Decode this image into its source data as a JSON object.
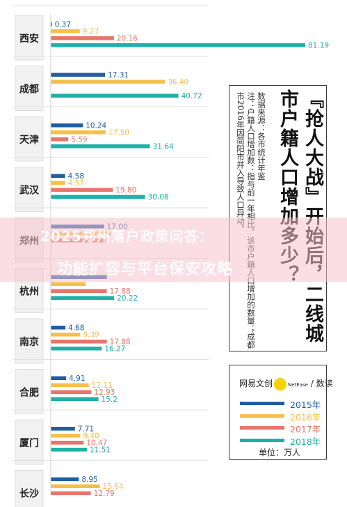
{
  "chart_data": {
    "type": "bar",
    "orientation": "horizontal",
    "title": "『抢人大战』开始后，二线城市户籍人口增加多少？",
    "note": "数据来源：各市统计年鉴\n注：户籍人口增加数：指与前一年相比，该市户籍人口增加的数量；成都市2016年因简阳市并入导致人口异动。",
    "unit": "单位：万人",
    "brand": "网易文创",
    "brand_tag": "NetEase",
    "brand_sub": "数读",
    "legend_placement": "right",
    "categories": [
      "西安",
      "成都",
      "天津",
      "武汉",
      "郑州",
      "杭州",
      "南京",
      "合肥",
      "厦门",
      "长沙"
    ],
    "series": [
      {
        "name": "2015年",
        "color": "#1f5fa0",
        "values": [
          0.37,
          17.31,
          10.24,
          4.58,
          17.0,
          17.88,
          4.68,
          4.91,
          7.71,
          8.95
        ]
      },
      {
        "name": "2016年",
        "color": "#f5c04a",
        "values": [
          9.27,
          36.4,
          17.5,
          4.57,
          19.1,
          11.12,
          9.39,
          12.11,
          9.4,
          15.64
        ]
      },
      {
        "name": "2017年",
        "color": "#e8756a",
        "values": [
          20.16,
          null,
          5.59,
          19.8,
          17.5,
          17.88,
          17.88,
          12.93,
          10.47,
          12.79
        ]
      },
      {
        "name": "2018年",
        "color": "#1fb0a8",
        "values": [
          81.19,
          40.72,
          31.64,
          30.08,
          null,
          20.22,
          16.27,
          15.2,
          11.51,
          null
        ]
      }
    ],
    "value_labels": [
      [
        "0.37",
        "9.27",
        "20.16",
        "81.19"
      ],
      [
        "17.31",
        "36.40",
        "",
        "40.72"
      ],
      [
        "10.24",
        "17.50",
        "5.59",
        "31.64"
      ],
      [
        "4.58",
        "4.57",
        "19.80",
        "30.08"
      ],
      [
        "17.00",
        "",
        "",
        ""
      ],
      [
        "",
        "",
        "17.88",
        "20.22"
      ],
      [
        "4.68",
        "9.39",
        "17.88",
        "16.27"
      ],
      [
        "4.91",
        "12.11",
        "12.93",
        "15.2"
      ],
      [
        "7.71",
        "9.40",
        "10.47",
        "11.51"
      ],
      [
        "8.95",
        "15.64",
        "12.79",
        ""
      ]
    ],
    "xlim": [
      0,
      82
    ]
  },
  "overlay": {
    "line1": "2025郑州落户政策问答：",
    "line2": "功能扩容与平台保安攻略"
  }
}
